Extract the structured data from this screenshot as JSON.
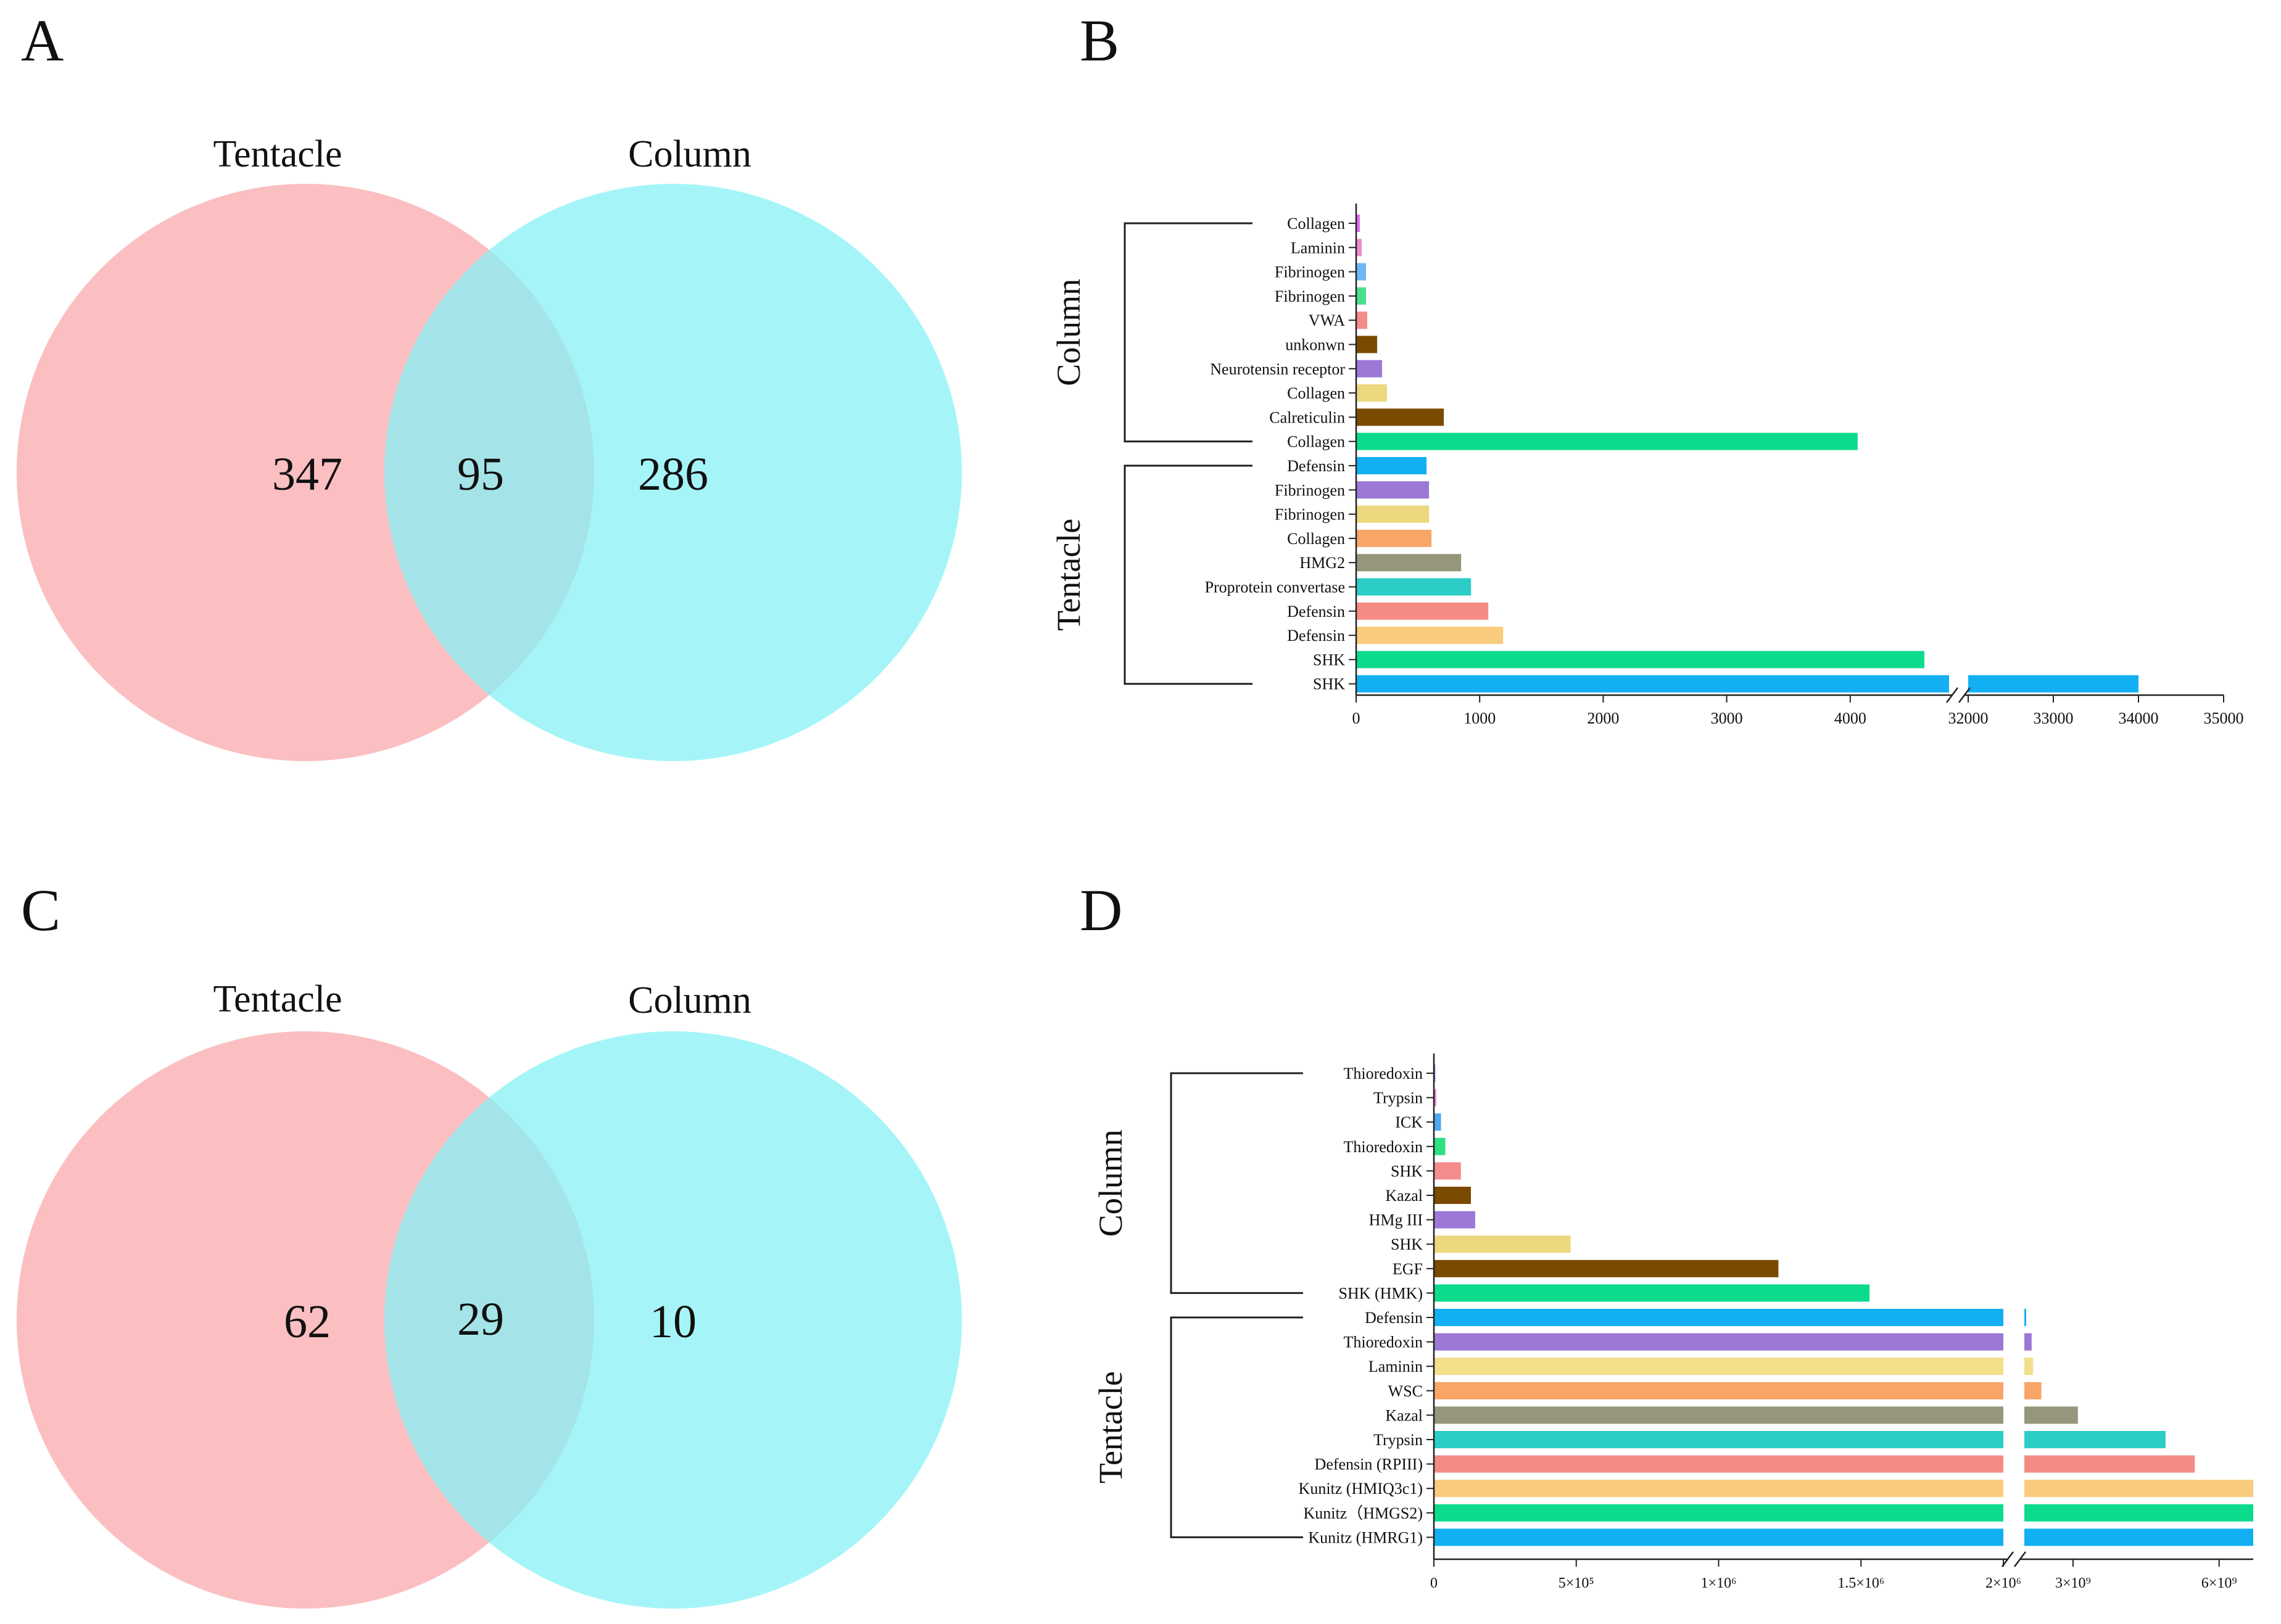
{
  "panels": {
    "A": {
      "label": "A",
      "left_label": "Tentacle",
      "right_label": "Column",
      "left_only": "347",
      "overlap": "95",
      "right_only": "286"
    },
    "C": {
      "label": "C",
      "left_label": "Tentacle",
      "right_label": "Column",
      "left_only": "62",
      "overlap": "29",
      "right_only": "10"
    }
  },
  "colors": {
    "tentacle_circle": "#f9a1a3",
    "column_circle": "#86f2f6",
    "overlap": "#a9e1e4"
  },
  "chart_data": [
    {
      "panel": "B",
      "label": "B",
      "type": "bar",
      "orientation": "horizontal",
      "axis_break": {
        "from": 4800,
        "to": 32000
      },
      "xticks": [
        "0",
        "1000",
        "2000",
        "3000",
        "4000",
        "32000",
        "33000",
        "34000",
        "35000"
      ],
      "groups": [
        {
          "name": "Column",
          "from": 0,
          "to": 9
        },
        {
          "name": "Tentacle",
          "from": 10,
          "to": 19
        }
      ],
      "categories": [
        "Collagen",
        "Laminin",
        "Fibrinogen",
        "Fibrinogen",
        "VWA",
        "unkonwn",
        "Neurotensin receptor",
        "Collagen",
        "Calreticulin",
        "Collagen",
        "Defensin",
        "Fibrinogen",
        "Fibrinogen",
        "Collagen",
        "HMG2",
        "Proprotein convertase",
        "Defensin",
        "Defensin",
        "SHK",
        "SHK"
      ],
      "values": [
        30,
        45,
        80,
        80,
        90,
        170,
        210,
        250,
        710,
        4060,
        570,
        590,
        590,
        610,
        850,
        930,
        1070,
        1190,
        4600,
        34000
      ],
      "colors": [
        "#e36ae8",
        "#ee88d6",
        "#6fb8f4",
        "#48e08f",
        "#f58c8c",
        "#7a4a00",
        "#9b78d6",
        "#ecd87e",
        "#7a4a00",
        "#0ddb8c",
        "#12b0f2",
        "#9b78d6",
        "#ecd87e",
        "#f9a567",
        "#96967c",
        "#2bcdc6",
        "#f58c84",
        "#f8cc7c",
        "#0ddb8c",
        "#12b0f2"
      ]
    },
    {
      "panel": "D",
      "label": "D",
      "type": "bar",
      "orientation": "horizontal",
      "axis_break": {
        "from": 2000000,
        "to": 2000000000
      },
      "xticks": [
        "0",
        "5×10⁵",
        "1×10⁶",
        "1.5×10⁶",
        "2×10⁶",
        "3×10⁹",
        "6×10⁹"
      ],
      "groups": [
        {
          "name": "Column",
          "from": 0,
          "to": 9
        },
        {
          "name": "Tentacle",
          "from": 10,
          "to": 19
        }
      ],
      "categories": [
        "Thioredoxin",
        "Trypsin",
        "ICK",
        "Thioredoxin",
        "SHK",
        "Kazal",
        "HMg III",
        "SHK",
        "EGF",
        "SHK (HMK)",
        "Defensin",
        "Thioredoxin",
        "Laminin",
        "WSC",
        "Kazal",
        "Trypsin",
        "Defensin (RPIII)",
        "Kunitz (HMIQ3c1)",
        "Kunitz（HMGS2)",
        "Kunitz (HMRG1)"
      ],
      "values": [
        5000,
        8000,
        25000,
        40000,
        95000,
        130000,
        145000,
        480000,
        1210000,
        1530000,
        2030000000,
        2150000000,
        2180000000,
        2350000000,
        3100000000,
        4900000000,
        5500000000,
        6700000000,
        6700000000,
        6700000000
      ],
      "colors": [
        "#9b6fe8",
        "#e47cd8",
        "#4ea7f0",
        "#2fe082",
        "#f58c8c",
        "#7a4a00",
        "#9b78d6",
        "#ecd87e",
        "#7a4a00",
        "#0ddb8c",
        "#12b0f2",
        "#9b78d6",
        "#f3de8a",
        "#f9a567",
        "#96967c",
        "#2bcdc6",
        "#f58c84",
        "#f8cc7c",
        "#0ddb8c",
        "#12b0f2"
      ]
    }
  ]
}
